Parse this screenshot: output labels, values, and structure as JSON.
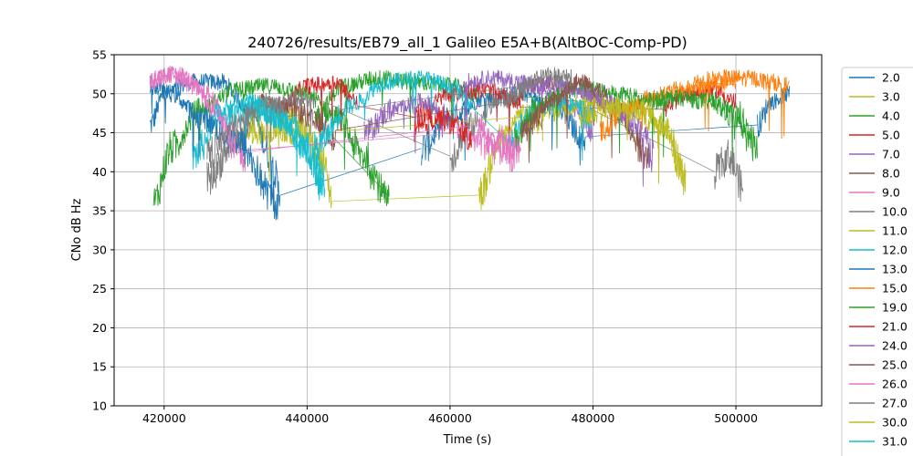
{
  "chart_data": {
    "type": "line",
    "title": "240726/results/EB79_all_1 Galileo E5A+B(AltBOC-Comp-PD)",
    "xlabel": "Time (s)",
    "ylabel": "CNo dB Hz",
    "xlim": [
      413000,
      512000
    ],
    "ylim": [
      10,
      55
    ],
    "xticks": [
      420000,
      440000,
      460000,
      480000,
      500000
    ],
    "yticks": [
      10,
      15,
      20,
      25,
      30,
      35,
      40,
      45,
      50,
      55
    ],
    "grid": true,
    "legend_position": "right, outside plot (partially cut off)",
    "series": [
      {
        "name": "2.0",
        "color": "#1f77b4",
        "passes": [
          {
            "x": [
              418000,
              420000,
              424000,
              428000,
              432000,
              435000,
              436200
            ],
            "y": [
              46,
              50,
              51.5,
              51.5,
              48,
              42,
              37
            ]
          },
          {
            "x": [
              456000,
              460000,
              465000,
              470000,
              475000,
              479000
            ],
            "y": [
              43,
              47,
              49.5,
              50,
              48,
              44
            ]
          },
          {
            "x": [
              503000,
              505000,
              507500
            ],
            "y": [
              46,
              49,
              50
            ]
          }
        ]
      },
      {
        "name": "3.0",
        "color": "#bcbd22",
        "passes": [
          {
            "x": [
              430000,
              434000,
              438000,
              442000,
              443500
            ],
            "y": [
              44,
              48,
              47,
              42,
              37
            ]
          },
          {
            "x": [
              464000,
              467000,
              470000,
              473000
            ],
            "y": [
              37,
              44,
              47,
              46
            ]
          }
        ]
      },
      {
        "name": "4.0",
        "color": "#2ca02c",
        "passes": [
          {
            "x": [
              418500,
              421000,
              425000,
              430000,
              435000,
              440000,
              444000,
              448000,
              451500
            ],
            "y": [
              36,
              43,
              48,
              50.5,
              51,
              50,
              47,
              42,
              36
            ]
          },
          {
            "x": [
              441000,
              445000,
              450000,
              455000,
              460000,
              464000
            ],
            "y": [
              47,
              51,
              52,
              51.5,
              51,
              50
            ]
          },
          {
            "x": [
              485000,
              490000,
              495000,
              500000,
              503000
            ],
            "y": [
              48.5,
              49.5,
              50,
              48,
              43
            ]
          }
        ]
      },
      {
        "name": "5.0",
        "color": "#d62728",
        "passes": [
          {
            "x": [
              436000,
              440000,
              444000,
              447000
            ],
            "y": [
              48,
              51,
              51.5,
              49
            ]
          },
          {
            "x": [
              455000,
              460000,
              465000,
              470000
            ],
            "y": [
              47,
              50,
              50.5,
              49
            ]
          },
          {
            "x": [
              490000,
              493000,
              497000,
              500000
            ],
            "y": [
              48,
              50,
              50.5,
              49
            ]
          }
        ]
      },
      {
        "name": "7.0",
        "color": "#9467bd",
        "passes": [
          {
            "x": [
              448000,
              452000,
              456000,
              460000
            ],
            "y": [
              45,
              48,
              49,
              47
            ]
          },
          {
            "x": [
              462000,
              466000,
              470000,
              474000,
              478000,
              480000
            ],
            "y": [
              51.5,
              52,
              51.5,
              50,
              48,
              45
            ]
          }
        ]
      },
      {
        "name": "8.0",
        "color": "#8c564b",
        "passes": [
          {
            "x": [
              433000,
              438000,
              442000,
              444000
            ],
            "y": [
              49,
              48,
              46,
              44
            ]
          },
          {
            "x": [
              468000,
              473000,
              478000,
              483000,
              488000
            ],
            "y": [
              49,
              51.5,
              51,
              48,
              42
            ]
          }
        ]
      },
      {
        "name": "9.0",
        "color": "#e377c2",
        "passes": [
          {
            "x": [
              418000,
              422000,
              426000,
              429000,
              431500
            ],
            "y": [
              52,
              52.5,
              50,
              46,
              41
            ]
          },
          {
            "x": [
              461000,
              464000,
              467000,
              469000
            ],
            "y": [
              45,
              44,
              43,
              42
            ]
          }
        ]
      },
      {
        "name": "10.0",
        "color": "#7f7f7f",
        "passes": [
          {
            "x": [
              426000,
              430000,
              434000,
              438000,
              441000
            ],
            "y": [
              39,
              44,
              48,
              49.5,
              49
            ]
          },
          {
            "x": [
              460000,
              463000,
              467000,
              471000
            ],
            "y": [
              42,
              46,
              49,
              51
            ]
          },
          {
            "x": [
              497000,
              499000,
              501000
            ],
            "y": [
              40,
              42,
              38
            ]
          }
        ]
      },
      {
        "name": "11.0",
        "color": "#bcbd22",
        "passes": [
          {
            "x": [
              432000,
              436000,
              440000
            ],
            "y": [
              45,
              45.5,
              44.5
            ]
          },
          {
            "x": [
              470000,
              475000,
              480000,
              485000,
              490000,
              493000
            ],
            "y": [
              47,
              48,
              49,
              48,
              46,
              39
            ]
          }
        ]
      },
      {
        "name": "12.0",
        "color": "#17becf",
        "passes": [
          {
            "x": [
              424000,
              428000,
              433000,
              438000,
              442500
            ],
            "y": [
              42,
              47,
              48,
              46,
              39
            ]
          },
          {
            "x": [
              441000,
              446000,
              451000,
              456000,
              460000,
              463000
            ],
            "y": [
              43,
              48.5,
              51.5,
              52,
              51,
              49
            ]
          },
          {
            "x": [
              468000,
              472000,
              476000,
              480000
            ],
            "y": [
              44,
              48,
              49,
              47
            ]
          }
        ]
      },
      {
        "name": "13.0",
        "color": "#1f77b4",
        "passes": [
          {
            "x": [
              418000,
              421000,
              425000,
              430000,
              436000
            ],
            "y": [
              51,
              50,
              47,
              44,
              36
            ]
          }
        ]
      },
      {
        "name": "15.0",
        "color": "#ff7f0e",
        "passes": [
          {
            "x": [
              481000,
              484000,
              488000,
              492000,
              496000,
              500000
            ],
            "y": [
              45,
              47.5,
              49.5,
              50.5,
              51,
              51.5
            ]
          },
          {
            "x": [
              494000,
              498000,
              502000,
              505000,
              507500
            ],
            "y": [
              51.5,
              52,
              52,
              51.5,
              51
            ]
          }
        ]
      },
      {
        "name": "19.0",
        "color": "#2ca02c",
        "passes": [
          {
            "x": [
              469000,
              472000,
              476000,
              480000,
              484000,
              488000,
              492000,
              496000,
              500000,
              502000
            ],
            "y": [
              44,
              48,
              50.5,
              50.5,
              50,
              49,
              49.5,
              49,
              47,
              44
            ]
          }
        ]
      },
      {
        "name": "21.0",
        "color": "#d62728",
        "passes": [
          {
            "x": [
              455000,
              458000,
              461000,
              463000
            ],
            "y": [
              45,
              47,
              46,
              44
            ]
          }
        ]
      },
      {
        "name": "24.0",
        "color": "#9467bd",
        "passes": [
          {
            "x": [
              470000,
              474000,
              478000,
              482000,
              486000,
              488500
            ],
            "y": [
              51,
              51.5,
              50.5,
              49,
              46,
              42
            ]
          }
        ]
      },
      {
        "name": "25.0",
        "color": "#8c564b",
        "passes": [
          {
            "x": [
              470000,
              474000,
              478000,
              482000
            ],
            "y": [
              45,
              49,
              51.5,
              50
            ]
          }
        ]
      },
      {
        "name": "26.0",
        "color": "#e377c2",
        "passes": [
          {
            "x": [
              418000,
              421000,
              424000,
              427000,
              430000
            ],
            "y": [
              51.5,
              52.5,
              51,
              48,
              43
            ]
          },
          {
            "x": [
              464000,
              467000,
              470000
            ],
            "y": [
              46,
              44,
              42
            ]
          }
        ]
      },
      {
        "name": "27.0",
        "color": "#7f7f7f",
        "passes": [
          {
            "x": [
              426000,
              430000,
              434000,
              437000
            ],
            "y": [
              42,
              46,
              49,
              48
            ]
          },
          {
            "x": [
              470000,
              474000,
              477000
            ],
            "y": [
              51,
              52.5,
              52
            ]
          }
        ]
      },
      {
        "name": "30.0",
        "color": "#bcbd22",
        "passes": [
          {
            "x": [
              478000,
              482000,
              486000,
              490000,
              492500
            ],
            "y": [
              47,
              48,
              48,
              46,
              40
            ]
          }
        ]
      },
      {
        "name": "31.0",
        "color": "#17becf",
        "passes": [
          {
            "x": [
              427000,
              432000,
              436000,
              440000,
              442000
            ],
            "y": [
              48,
              49,
              47,
              43,
              38
            ]
          }
        ]
      }
    ]
  }
}
